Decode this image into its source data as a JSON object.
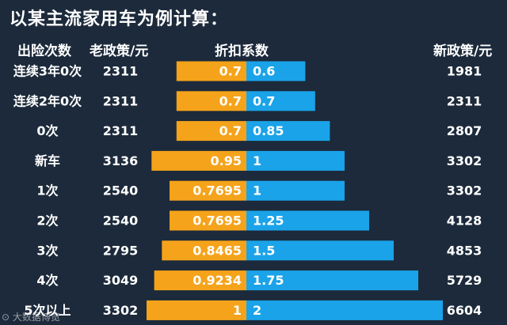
{
  "title": "以某主流家用车为例计算：",
  "headers": {
    "count": "出险次数",
    "old": "老政策/元",
    "factor": "折扣系数",
    "new": "新政策/元"
  },
  "watermark": "⊙ 大数据博览",
  "colors": {
    "background": "#1c2a3b",
    "old_bar": "#f5a31a",
    "new_bar": "#1aa3e8",
    "text": "#ffffff"
  },
  "chart_data": {
    "type": "bar",
    "orientation": "horizontal-diverging",
    "title": "以某主流家用车为例计算：",
    "categories": [
      "连续3年0次",
      "连续2年0次",
      "0次",
      "新车",
      "1次",
      "2次",
      "3次",
      "4次",
      "5次以上"
    ],
    "old_price": [
      2311,
      2311,
      2311,
      3136,
      2540,
      2540,
      2795,
      3049,
      3302
    ],
    "new_price": [
      1981,
      2311,
      2807,
      3302,
      3302,
      4128,
      4853,
      5729,
      6604
    ],
    "series": [
      {
        "name": "老政策",
        "labels": [
          "0.7",
          "0.7",
          "0.7",
          "0.95",
          "0.7695",
          "0.7695",
          "0.8465",
          "0.9234",
          "1"
        ],
        "values": [
          0.7,
          0.7,
          0.7,
          0.95,
          0.7695,
          0.7695,
          0.8465,
          0.9234,
          1
        ],
        "color": "#f5a31a"
      },
      {
        "name": "新政策",
        "labels": [
          "0.6",
          "0.7",
          "0.85",
          "1",
          "1",
          "1.25",
          "1.5",
          "1.75",
          "2"
        ],
        "values": [
          0.6,
          0.7,
          0.85,
          1,
          1,
          1.25,
          1.5,
          1.75,
          2
        ],
        "color": "#1aa3e8"
      }
    ]
  }
}
